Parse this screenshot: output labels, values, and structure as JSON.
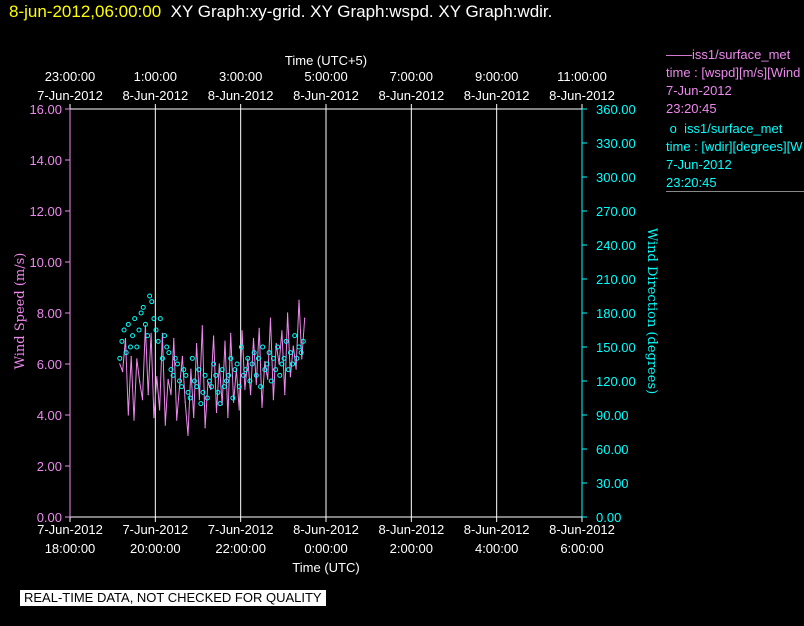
{
  "header": {
    "timestamp": "8-jun-2012,06:00:00",
    "graphs": "XY Graph:xy-grid.  XY Graph:wspd.  XY Graph:wdir."
  },
  "colors": {
    "wspd": "#ee88ee",
    "wdir": "#00ffff",
    "axis": "#ffffff",
    "timestamp": "#ffff00"
  },
  "legend": [
    {
      "marker": "——",
      "title": "iss1/surface_met",
      "line1": "time : [wspd][m/s][Wind",
      "line2": "7-Jun-2012",
      "line3": "23:20:45"
    },
    {
      "marker": "o",
      "title": "iss1/surface_met",
      "line1": "time : [wdir][degrees][W",
      "line2": "7-Jun-2012",
      "line3": "23:20:45"
    }
  ],
  "disclaimer": "REAL-TIME DATA, NOT CHECKED FOR QUALITY",
  "chart_data": {
    "type": "line",
    "top_axis": {
      "title": "Time (UTC+5)",
      "ticks": [
        {
          "time": "23:00:00",
          "date": "7-Jun-2012"
        },
        {
          "time": "1:00:00",
          "date": "8-Jun-2012"
        },
        {
          "time": "3:00:00",
          "date": "8-Jun-2012"
        },
        {
          "time": "5:00:00",
          "date": "8-Jun-2012"
        },
        {
          "time": "7:00:00",
          "date": "8-Jun-2012"
        },
        {
          "time": "9:00:00",
          "date": "8-Jun-2012"
        },
        {
          "time": "11:00:00",
          "date": "8-Jun-2012"
        }
      ]
    },
    "bottom_axis": {
      "title": "Time (UTC)",
      "ticks": [
        {
          "date": "7-Jun-2012",
          "time": "18:00:00"
        },
        {
          "date": "7-Jun-2012",
          "time": "20:00:00"
        },
        {
          "date": "7-Jun-2012",
          "time": "22:00:00"
        },
        {
          "date": "8-Jun-2012",
          "time": "0:00:00"
        },
        {
          "date": "8-Jun-2012",
          "time": "2:00:00"
        },
        {
          "date": "8-Jun-2012",
          "time": "4:00:00"
        },
        {
          "date": "8-Jun-2012",
          "time": "6:00:00"
        }
      ],
      "range": [
        "2012-06-07 18:00",
        "2012-06-08 06:00"
      ]
    },
    "left_axis": {
      "title": "Wind Speed (m/s)",
      "ylim": [
        0,
        16
      ],
      "ticks": [
        "0.00",
        "2.00",
        "4.00",
        "6.00",
        "8.00",
        "10.00",
        "12.00",
        "14.00",
        "16.00"
      ]
    },
    "right_axis": {
      "title": "Wind Direction (degrees)",
      "ylim": [
        0,
        360
      ],
      "ticks": [
        "0.00",
        "30.00",
        "60.00",
        "90.00",
        "120.00",
        "150.00",
        "180.00",
        "210.00",
        "240.00",
        "270.00",
        "300.00",
        "330.00",
        "360.00"
      ]
    },
    "grid": "vertical",
    "series": [
      {
        "name": "iss1/surface_met",
        "style": "line",
        "axis": "left",
        "x": [
          "19:10",
          "19:14",
          "19:18",
          "19:22",
          "19:26",
          "19:30",
          "19:34",
          "19:38",
          "19:42",
          "19:46",
          "19:50",
          "19:54",
          "19:58",
          "20:02",
          "20:06",
          "20:10",
          "20:14",
          "20:18",
          "20:22",
          "20:26",
          "20:30",
          "20:34",
          "20:38",
          "20:42",
          "20:46",
          "20:50",
          "20:54",
          "20:58",
          "21:02",
          "21:06",
          "21:10",
          "21:14",
          "21:18",
          "21:22",
          "21:26",
          "21:30",
          "21:34",
          "21:38",
          "21:42",
          "21:46",
          "21:50",
          "21:54",
          "21:58",
          "22:02",
          "22:06",
          "22:10",
          "22:14",
          "22:18",
          "22:22",
          "22:26",
          "22:30",
          "22:34",
          "22:38",
          "22:42",
          "22:46",
          "22:50",
          "22:54",
          "22:58",
          "23:02",
          "23:06",
          "23:10",
          "23:14",
          "23:18",
          "23:22",
          "23:26",
          "23:30"
        ],
        "values": [
          6.0,
          5.7,
          7.0,
          4.0,
          6.3,
          3.8,
          6.2,
          5.3,
          4.6,
          7.5,
          4.8,
          7.2,
          3.9,
          5.5,
          4.2,
          7.2,
          3.6,
          5.4,
          4.8,
          7.0,
          3.8,
          5.1,
          6.3,
          4.5,
          3.2,
          5.8,
          3.9,
          6.8,
          4.6,
          7.5,
          3.5,
          5.3,
          5.0,
          7.1,
          4.1,
          6.0,
          4.4,
          6.9,
          3.9,
          7.2,
          4.5,
          5.8,
          4.2,
          7.3,
          5.0,
          6.2,
          4.8,
          7.0,
          5.2,
          7.4,
          4.3,
          6.1,
          5.4,
          7.8,
          4.6,
          6.8,
          6.0,
          7.3,
          4.8,
          8.0,
          5.5,
          6.7,
          5.8,
          8.5,
          6.2,
          7.8
        ]
      },
      {
        "name": "iss1/surface_met",
        "style": "scatter",
        "axis": "right",
        "x": [
          "19:10",
          "19:13",
          "19:16",
          "19:19",
          "19:22",
          "19:25",
          "19:28",
          "19:31",
          "19:34",
          "19:37",
          "19:40",
          "19:43",
          "19:46",
          "19:49",
          "19:52",
          "19:55",
          "19:58",
          "20:01",
          "20:04",
          "20:07",
          "20:10",
          "20:13",
          "20:16",
          "20:19",
          "20:22",
          "20:25",
          "20:28",
          "20:31",
          "20:34",
          "20:37",
          "20:40",
          "20:43",
          "20:46",
          "20:49",
          "20:52",
          "20:55",
          "20:58",
          "21:01",
          "21:04",
          "21:07",
          "21:10",
          "21:13",
          "21:16",
          "21:19",
          "21:22",
          "21:25",
          "21:28",
          "21:31",
          "21:34",
          "21:37",
          "21:40",
          "21:43",
          "21:46",
          "21:49",
          "21:52",
          "21:55",
          "21:58",
          "22:01",
          "22:04",
          "22:07",
          "22:10",
          "22:13",
          "22:16",
          "22:19",
          "22:22",
          "22:25",
          "22:28",
          "22:31",
          "22:34",
          "22:37",
          "22:40",
          "22:43",
          "22:46",
          "22:49",
          "22:52",
          "22:55",
          "22:58",
          "23:01",
          "23:04",
          "23:07",
          "23:10",
          "23:13",
          "23:16",
          "23:19",
          "23:22",
          "23:25",
          "23:28"
        ],
        "values": [
          140,
          155,
          165,
          145,
          170,
          150,
          160,
          175,
          150,
          165,
          180,
          185,
          170,
          160,
          195,
          190,
          175,
          165,
          155,
          175,
          140,
          160,
          150,
          145,
          130,
          125,
          140,
          135,
          120,
          115,
          130,
          125,
          110,
          105,
          140,
          120,
          115,
          130,
          100,
          110,
          125,
          105,
          120,
          115,
          135,
          125,
          110,
          100,
          130,
          115,
          120,
          125,
          140,
          105,
          130,
          135,
          115,
          150,
          125,
          130,
          140,
          120,
          135,
          145,
          125,
          140,
          115,
          150,
          130,
          135,
          145,
          120,
          140,
          130,
          150,
          125,
          135,
          140,
          155,
          130,
          145,
          135,
          160,
          140,
          150,
          145,
          155
        ]
      }
    ]
  }
}
